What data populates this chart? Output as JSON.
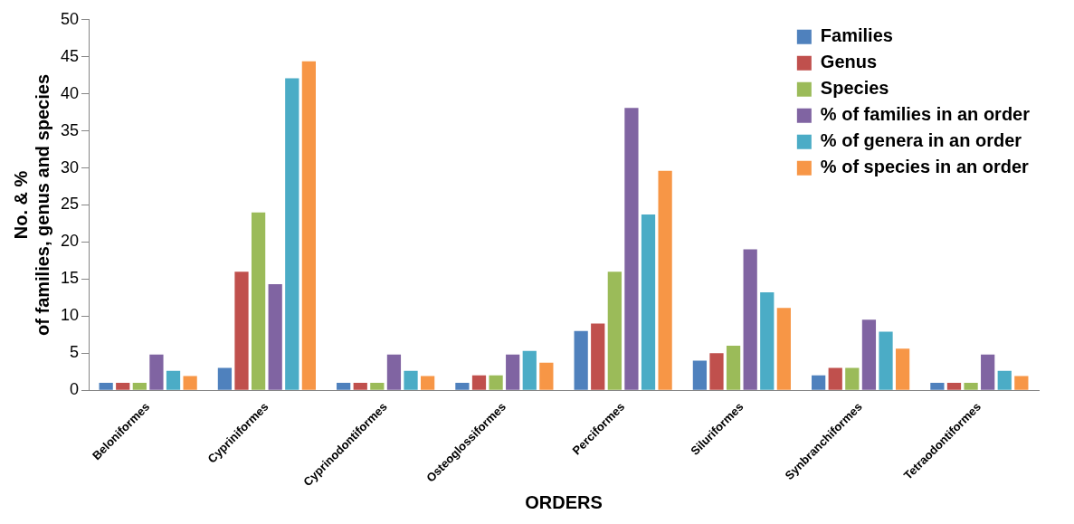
{
  "chart_data": {
    "type": "bar",
    "xlabel": "ORDERS",
    "ylabel": "No. & %\nof families, genus and species",
    "categories": [
      "Beloniformes",
      "Cypriniformes",
      "Cyprinodontiformes",
      "Osteoglossiformes",
      "Perciformes",
      "Siluriformes",
      "Synbranchiformes",
      "Tetraodontiformes"
    ],
    "series": [
      {
        "name": "Families",
        "color": "#4f81bd",
        "values": [
          1,
          3,
          1,
          1,
          8,
          4,
          2,
          1
        ]
      },
      {
        "name": "Genus",
        "color": "#c0504d",
        "values": [
          1,
          16,
          1,
          2,
          9,
          5,
          3,
          1
        ]
      },
      {
        "name": "Species",
        "color": "#9bbb59",
        "values": [
          1,
          24,
          1,
          2,
          16,
          6,
          3,
          1
        ]
      },
      {
        "name": "% of families in an order",
        "color": "#8064a2",
        "values": [
          4.8,
          14.3,
          4.8,
          4.8,
          38.1,
          19,
          9.5,
          4.8
        ]
      },
      {
        "name": "% of genera in an order",
        "color": "#4bacc6",
        "values": [
          2.6,
          42.1,
          2.6,
          5.3,
          23.7,
          13.2,
          7.9,
          2.6
        ]
      },
      {
        "name": "% of species in an order",
        "color": "#f79646",
        "values": [
          1.9,
          44.4,
          1.9,
          3.7,
          29.6,
          11.1,
          5.6,
          1.9
        ]
      }
    ],
    "ylim": [
      0,
      50
    ],
    "yticks": [
      0,
      5,
      10,
      15,
      20,
      25,
      30,
      35,
      40,
      45,
      50
    ],
    "legend": "top right"
  }
}
